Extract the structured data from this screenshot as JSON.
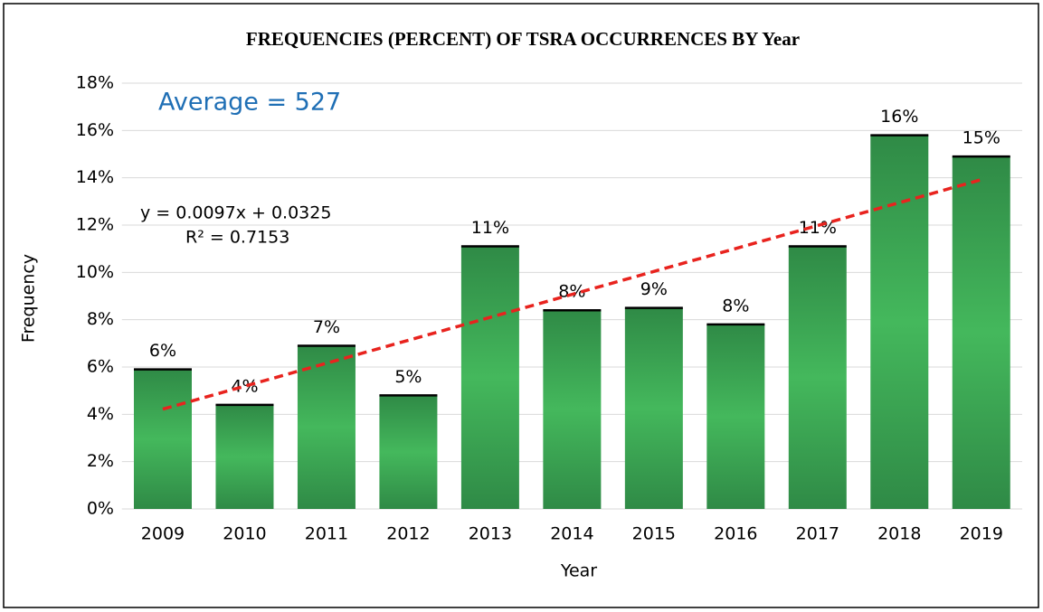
{
  "chart_data": {
    "type": "bar",
    "title": "FREQUENCIES (PERCENT) OF TSRA OCCURRENCES  BY Year",
    "x_label": "Year",
    "y_label": "Frequency",
    "annotations": [
      "Average = 527",
      "y = 0.0097x + 0.0325",
      "R² = 0.7153"
    ],
    "categories": [
      "2009",
      "2010",
      "2011",
      "2012",
      "2013",
      "2014",
      "2015",
      "2016",
      "2017",
      "2018",
      "2019"
    ],
    "values": [
      5.9,
      4.4,
      6.9,
      4.8,
      11.1,
      8.4,
      8.5,
      7.8,
      11.1,
      15.8,
      14.9
    ],
    "value_labels": [
      "6%",
      "4%",
      "7%",
      "5%",
      "11%",
      "8%",
      "9%",
      "8%",
      "11%",
      "16%",
      "15%"
    ],
    "color": "#3aa856",
    "trendline": {
      "color": "#e8231e",
      "values": [
        4.22,
        13.92
      ]
    },
    "ylim": [
      0,
      18
    ],
    "yticks": [
      {
        "value": 0,
        "label": "0%"
      },
      {
        "value": 2,
        "label": "2%"
      },
      {
        "value": 4,
        "label": "4%"
      },
      {
        "value": 6,
        "label": "6%"
      },
      {
        "value": 8,
        "label": "8%"
      },
      {
        "value": 10,
        "label": "10%"
      },
      {
        "value": 12,
        "label": "12%"
      },
      {
        "value": 14,
        "label": "14%"
      },
      {
        "value": 16,
        "label": "16%"
      },
      {
        "value": 18,
        "label": "18%"
      }
    ],
    "grid": true
  }
}
